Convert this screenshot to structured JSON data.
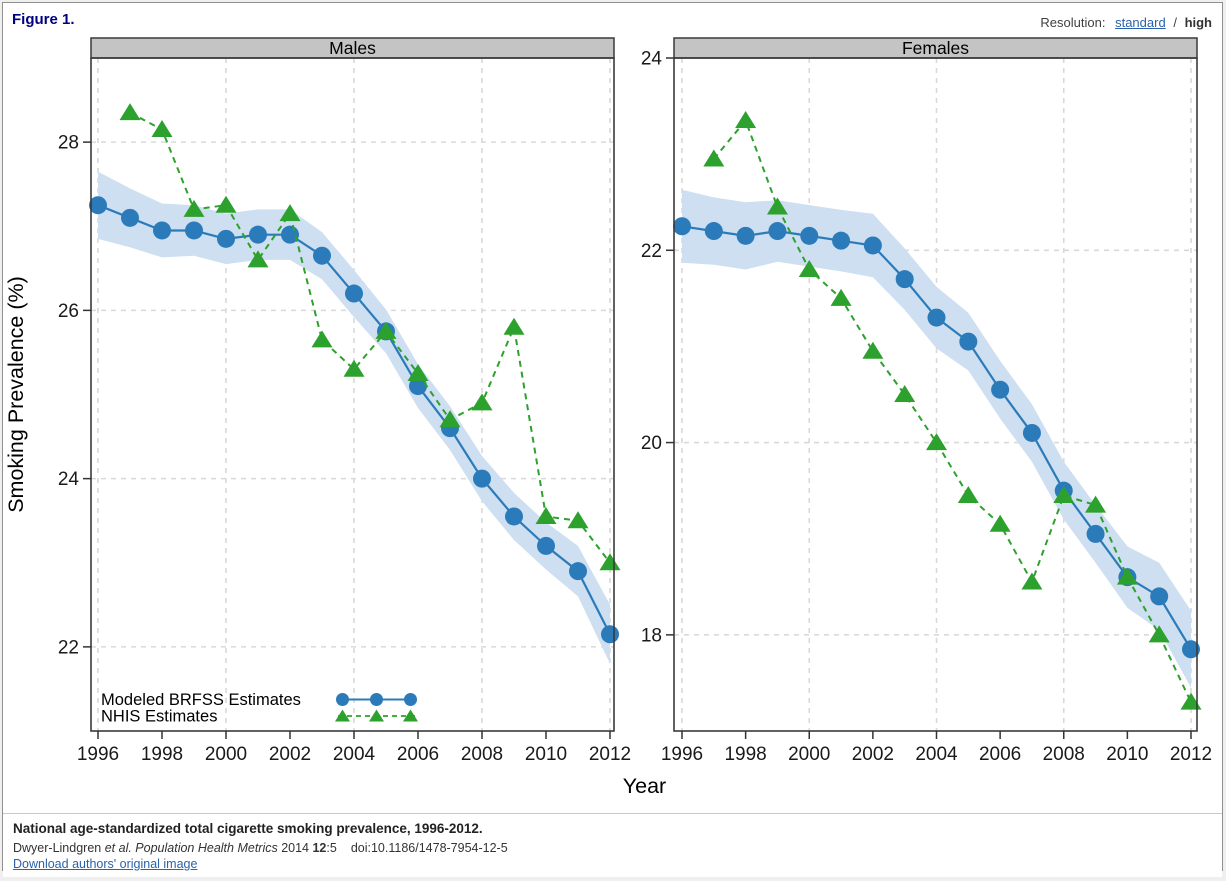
{
  "header": {
    "figure_label": "Figure 1.",
    "resolution_label": "Resolution:",
    "resolution_standard": "standard",
    "resolution_separator": "/",
    "resolution_high": "high"
  },
  "axes": {
    "xlabel": "Year",
    "ylabel": "Smoking Prevalence (%)"
  },
  "legend": {
    "items": [
      {
        "label": "Modeled BRFSS Estimates",
        "series": "brfss"
      },
      {
        "label": "NHIS Estimates",
        "series": "nhis"
      }
    ]
  },
  "chart_colors": {
    "brfss_blue": "#2b7bba",
    "band_blue": "#cddff0",
    "nhis_green": "#2da12d",
    "grid": "#d9d9d9",
    "panel_header_fill": "#c4c4c4",
    "panel_border": "#3a3a3a",
    "tick_text": "#1a1a1a"
  },
  "chart_data": [
    {
      "type": "line",
      "title": "Males",
      "x": [
        1996,
        1997,
        1998,
        1999,
        2000,
        2001,
        2002,
        2003,
        2004,
        2005,
        2006,
        2007,
        2008,
        2009,
        2010,
        2011,
        2012
      ],
      "xticks": [
        1996,
        1998,
        2000,
        2002,
        2004,
        2006,
        2008,
        2010,
        2012
      ],
      "x_gridlines": [
        1996,
        2000,
        2004,
        2008,
        2012
      ],
      "ylim": [
        21.0,
        29.0
      ],
      "yticks": [
        22,
        24,
        26,
        28
      ],
      "series": [
        {
          "name": "Modeled BRFSS Estimates",
          "color": "brfss_blue",
          "marker": "circle",
          "line": "solid",
          "values": [
            27.25,
            27.1,
            26.95,
            26.95,
            26.85,
            26.9,
            26.9,
            26.65,
            26.2,
            25.75,
            25.1,
            24.6,
            24.0,
            23.55,
            23.2,
            22.9,
            22.15
          ],
          "band_upper": [
            27.65,
            27.45,
            27.27,
            27.25,
            27.15,
            27.2,
            27.2,
            26.93,
            26.48,
            26.01,
            25.36,
            24.86,
            24.27,
            23.83,
            23.48,
            23.2,
            22.5
          ],
          "band_lower": [
            26.85,
            26.75,
            26.63,
            26.65,
            26.55,
            26.6,
            26.6,
            26.37,
            25.92,
            25.49,
            24.84,
            24.34,
            23.73,
            23.27,
            22.92,
            22.6,
            21.8
          ]
        },
        {
          "name": "NHIS Estimates",
          "color": "nhis_green",
          "marker": "triangle",
          "line": "dashed",
          "x": [
            1997,
            1998,
            1999,
            2000,
            2001,
            2002,
            2003,
            2004,
            2005,
            2006,
            2007,
            2008,
            2009,
            2010,
            2011,
            2012
          ],
          "values": [
            28.35,
            28.15,
            27.2,
            27.25,
            26.6,
            27.15,
            25.65,
            25.3,
            25.75,
            25.25,
            24.7,
            24.9,
            25.8,
            23.55,
            23.5,
            23.0
          ]
        }
      ]
    },
    {
      "type": "line",
      "title": "Females",
      "x": [
        1996,
        1997,
        1998,
        1999,
        2000,
        2001,
        2002,
        2003,
        2004,
        2005,
        2006,
        2007,
        2008,
        2009,
        2010,
        2011,
        2012
      ],
      "xticks": [
        1996,
        1998,
        2000,
        2002,
        2004,
        2006,
        2008,
        2010,
        2012
      ],
      "x_gridlines": [
        1996,
        2000,
        2004,
        2008,
        2012
      ],
      "ylim": [
        17.0,
        24.0
      ],
      "yticks": [
        18,
        20,
        22,
        24
      ],
      "series": [
        {
          "name": "Modeled BRFSS Estimates",
          "color": "brfss_blue",
          "marker": "circle",
          "line": "solid",
          "values": [
            22.25,
            22.2,
            22.15,
            22.2,
            22.15,
            22.1,
            22.05,
            21.7,
            21.3,
            21.05,
            20.55,
            20.1,
            19.5,
            19.05,
            18.6,
            18.4,
            17.85
          ],
          "band_upper": [
            22.63,
            22.55,
            22.5,
            22.52,
            22.47,
            22.42,
            22.38,
            22.02,
            21.62,
            21.35,
            20.85,
            20.4,
            19.8,
            19.35,
            18.92,
            18.75,
            18.25
          ],
          "band_lower": [
            21.87,
            21.85,
            21.8,
            21.88,
            21.83,
            21.78,
            21.72,
            21.38,
            20.98,
            20.75,
            20.25,
            19.8,
            19.2,
            18.75,
            18.28,
            18.05,
            17.45
          ]
        },
        {
          "name": "NHIS Estimates",
          "color": "nhis_green",
          "marker": "triangle",
          "line": "dashed",
          "x": [
            1997,
            1998,
            1999,
            2000,
            2001,
            2002,
            2003,
            2004,
            2005,
            2006,
            2007,
            2008,
            2009,
            2010,
            2011,
            2012
          ],
          "values": [
            22.95,
            23.35,
            22.45,
            21.8,
            21.5,
            20.95,
            20.5,
            20.0,
            19.45,
            19.15,
            18.55,
            19.45,
            19.35,
            18.6,
            18.0,
            17.3
          ]
        }
      ]
    }
  ],
  "caption": {
    "title": "National age-standardized total cigarette smoking prevalence, 1996-2012.",
    "cite_authors": "Dwyer-Lindgren ",
    "cite_etal": "et al. ",
    "cite_journal": "Population Health Metrics ",
    "cite_year": "2014 ",
    "cite_volume": "12",
    "cite_issue": ":5",
    "cite_doi": "doi:10.1186/1478-7954-12-5",
    "download_link": "Download authors' original image"
  }
}
